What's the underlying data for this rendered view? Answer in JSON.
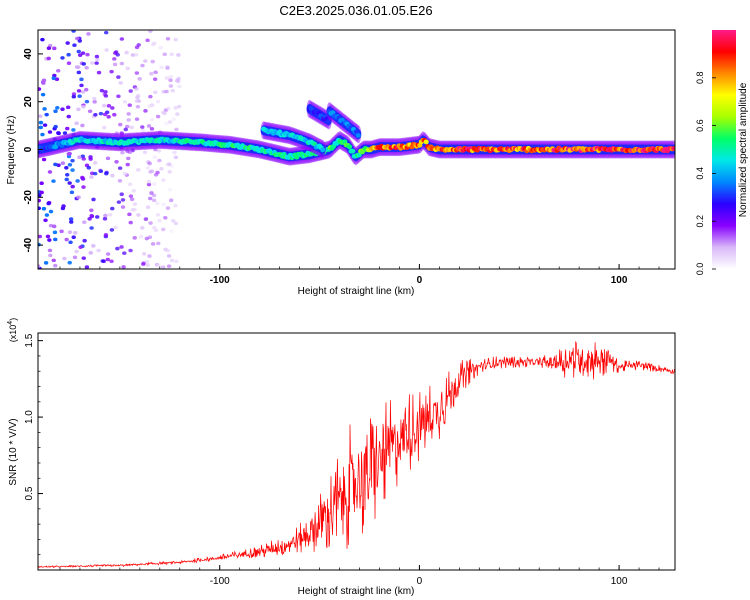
{
  "figure": {
    "title": "C2E3.2025.036.01.05.E26"
  },
  "chart_data": [
    {
      "type": "heatmap",
      "title": "C2E3.2025.036.01.05.E26",
      "xlabel": "Height of straight line (km)",
      "ylabel": "Frequency (Hz)",
      "xlim": [
        -191,
        128
      ],
      "ylim": [
        -50,
        50
      ],
      "xticks": [
        -100,
        0,
        100
      ],
      "yticks": [
        -40,
        -20,
        0,
        20,
        40
      ],
      "colorbar": {
        "label": "Normalized spectral amplitude",
        "range": [
          0,
          1
        ],
        "ticks": [
          "0.0",
          "0.2",
          "0.4",
          "0.6",
          "0.8"
        ],
        "colormap": [
          "#ffffff",
          "#d8b8f8",
          "#8800ff",
          "#2a00ff",
          "#0088ff",
          "#00e8e8",
          "#00ff66",
          "#a8ff00",
          "#ffff00",
          "#ff8800",
          "#ff0000",
          "#ff1a88"
        ]
      },
      "ridge": {
        "x": [
          -191,
          -170,
          -150,
          -130,
          -110,
          -95,
          -80,
          -65,
          -55,
          -45,
          -40,
          -36,
          -32,
          -28,
          -24,
          -20,
          -10,
          0,
          2,
          5,
          10,
          20,
          40,
          60,
          80,
          100,
          128
        ],
        "y": [
          0,
          4,
          3,
          4,
          3,
          2,
          0,
          -3,
          -2,
          0,
          4,
          2,
          -3,
          0,
          0,
          1,
          1,
          2,
          4,
          1,
          0,
          0,
          0,
          0,
          0,
          0,
          0
        ],
        "amplitude": [
          0.3,
          0.45,
          0.45,
          0.45,
          0.5,
          0.5,
          0.5,
          0.5,
          0.5,
          0.55,
          0.5,
          0.55,
          0.5,
          0.6,
          0.75,
          0.8,
          0.85,
          0.8,
          0.8,
          0.85,
          0.85,
          0.9,
          0.85,
          0.85,
          0.9,
          0.9,
          0.9
        ]
      },
      "branches": [
        {
          "x": [
            -78,
            -65,
            -55,
            -48
          ],
          "y": [
            8,
            6,
            3,
            0
          ],
          "amplitude": 0.45
        },
        {
          "x": [
            -55,
            -45
          ],
          "y": [
            17,
            12
          ],
          "amplitude": 0.3
        },
        {
          "x": [
            -45,
            -30
          ],
          "y": [
            16,
            6
          ],
          "amplitude": 0.35
        }
      ],
      "noise_region": {
        "x": [
          -191,
          -120
        ],
        "y": [
          -50,
          50
        ],
        "amplitude": 0.25
      }
    },
    {
      "type": "line",
      "xlabel": "Height of straight line (km)",
      "ylabel": "SNR (10 * V/V)",
      "yscale_label": "(x10",
      "yscale_exponent": "4",
      "ylabel_suffix": ")",
      "xlim": [
        -191,
        128
      ],
      "ylim": [
        0,
        1.55
      ],
      "xticks": [
        -100,
        0,
        100
      ],
      "yticks": [
        "0.5",
        "1.0",
        "1.5"
      ],
      "ytick_values": [
        0.5,
        1.0,
        1.5
      ],
      "color": "#ff0000",
      "trend": {
        "x": [
          -191,
          -150,
          -120,
          -100,
          -80,
          -70,
          -60,
          -50,
          -40,
          -35,
          -30,
          -25,
          -20,
          -15,
          -10,
          -5,
          0,
          5,
          10,
          15,
          20,
          25,
          30,
          40,
          50,
          60,
          70,
          75,
          80,
          90,
          95,
          100,
          110,
          128
        ],
        "y": [
          0.02,
          0.03,
          0.05,
          0.08,
          0.12,
          0.15,
          0.2,
          0.3,
          0.45,
          0.55,
          0.6,
          0.62,
          0.7,
          0.8,
          0.85,
          0.9,
          0.95,
          1.0,
          1.05,
          1.15,
          1.25,
          1.3,
          1.33,
          1.36,
          1.36,
          1.36,
          1.36,
          1.37,
          1.38,
          1.38,
          1.38,
          1.33,
          1.34,
          1.3
        ]
      },
      "noise": {
        "x": [
          -191,
          -120,
          -100,
          -80,
          -60,
          -50,
          -40,
          -30,
          -20,
          -10,
          0,
          10,
          20,
          30,
          60,
          75,
          90,
          100,
          128
        ],
        "amplitude": [
          0.005,
          0.01,
          0.02,
          0.04,
          0.1,
          0.2,
          0.35,
          0.45,
          0.35,
          0.3,
          0.25,
          0.2,
          0.12,
          0.05,
          0.03,
          0.12,
          0.15,
          0.04,
          0.02
        ]
      }
    }
  ]
}
